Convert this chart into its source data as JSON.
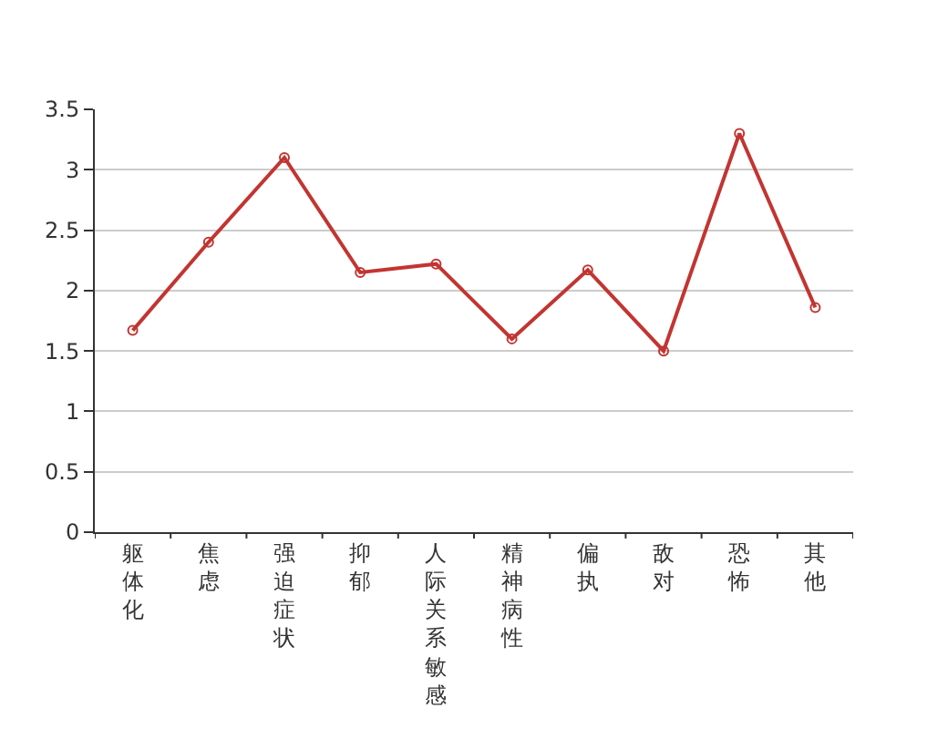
{
  "chart_data": {
    "type": "line",
    "categories": [
      "躯体化",
      "焦虑",
      "强迫症状",
      "抑郁",
      "人际关系敏感",
      "精神病性",
      "偏执",
      "敌对",
      "恐怖",
      "其他"
    ],
    "series": [
      {
        "color": "#c23531",
        "values": [
          1.67,
          2.4,
          3.1,
          2.15,
          2.22,
          1.6,
          2.17,
          1.5,
          3.3,
          1.86
        ]
      }
    ],
    "ylim": [
      0,
      3.5
    ],
    "yticks": [
      0,
      0.5,
      1,
      1.5,
      2,
      2.5,
      3,
      3.5
    ],
    "grid": "y",
    "marker": "circle",
    "line_style": "solid"
  }
}
